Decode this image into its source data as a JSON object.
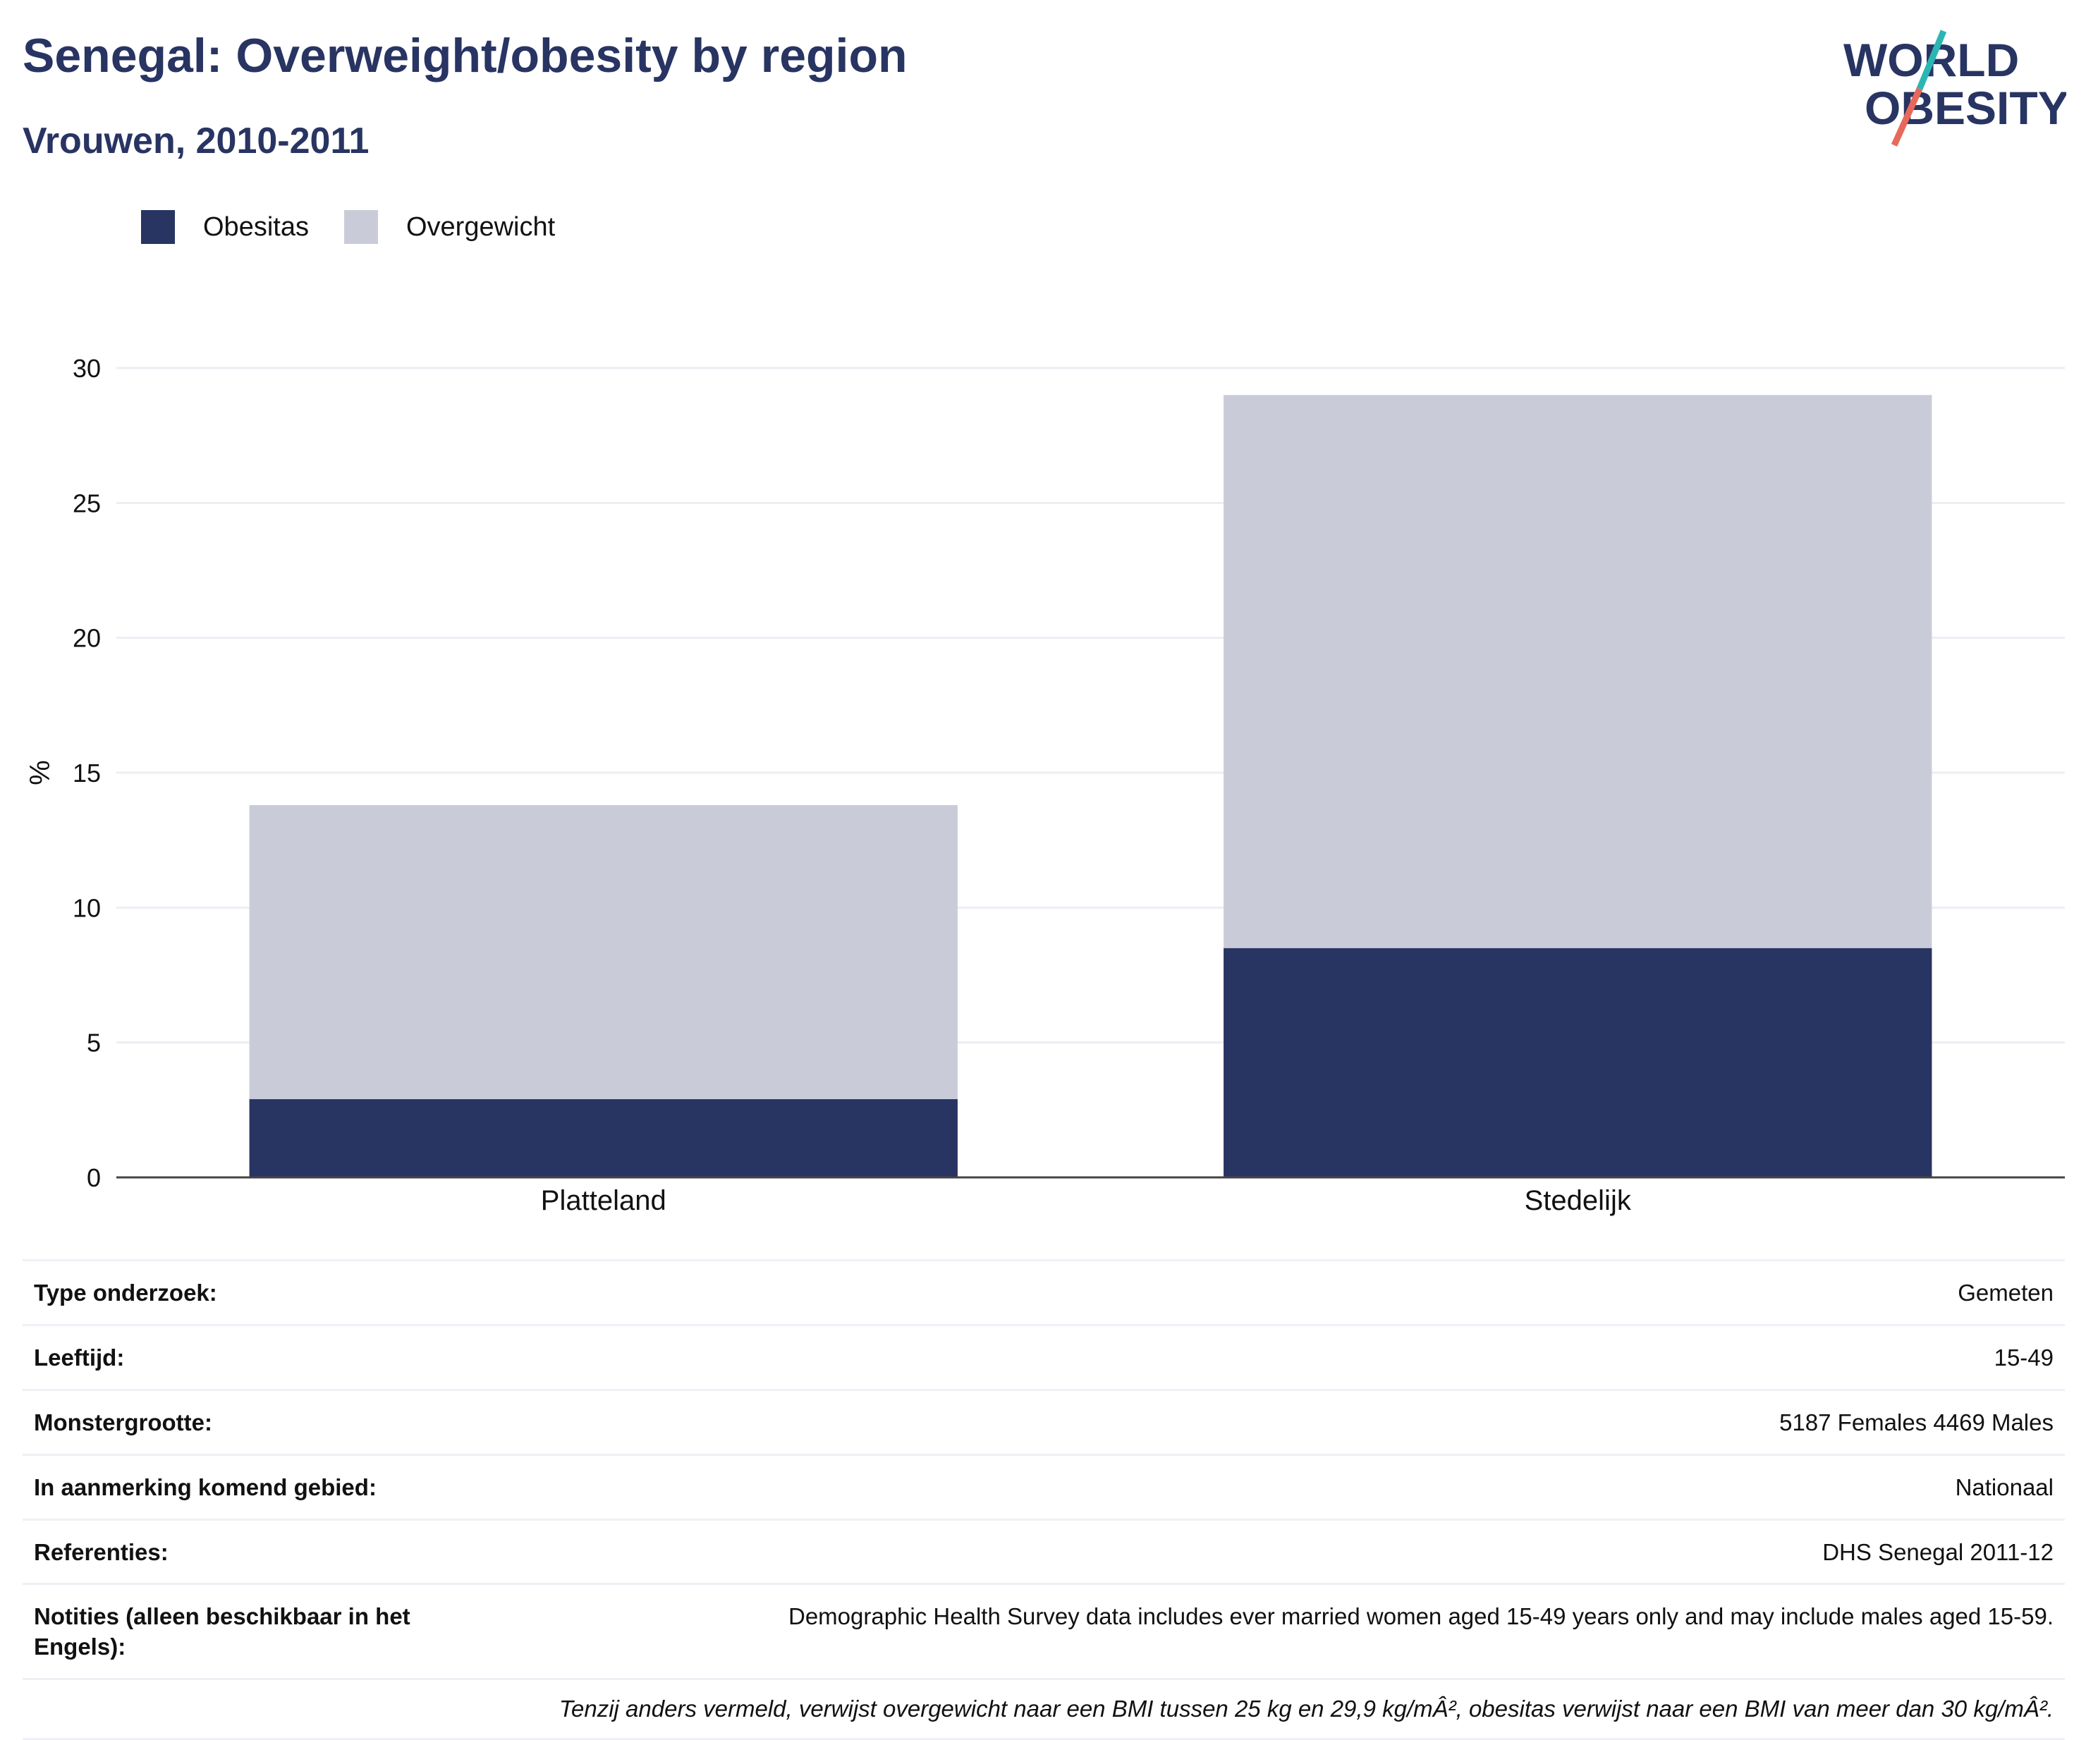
{
  "header": {
    "title": "Senegal: Overweight/obesity by region",
    "subtitle": "Vrouwen, 2010-2011"
  },
  "logo": {
    "line1": "WORLD",
    "line2": "OBESITY",
    "colors": {
      "text": "#283462",
      "slash_top": "#2bb6b4",
      "slash_bottom": "#e8695c"
    }
  },
  "colors": {
    "obesitas": "#283462",
    "overgewicht": "#c9ccd8",
    "grid": "#eceef4",
    "axis": "#444444"
  },
  "chart_data": {
    "type": "bar",
    "stacked": true,
    "categories": [
      "Platteland",
      "Stedelijk"
    ],
    "series": [
      {
        "name": "Obesitas",
        "values": [
          2.9,
          8.5
        ]
      },
      {
        "name": "Overgewicht",
        "values": [
          10.9,
          20.5
        ]
      }
    ],
    "totals": [
      13.8,
      29.0
    ],
    "ylabel": "%",
    "ylim": [
      0,
      30
    ],
    "yticks": [
      0,
      5,
      10,
      15,
      20,
      25,
      30
    ],
    "grid": true,
    "legend_position": "top-left"
  },
  "meta": {
    "rows": [
      {
        "label": "Type onderzoek:",
        "value": "Gemeten"
      },
      {
        "label": "Leeftijd:",
        "value": "15-49"
      },
      {
        "label": "Monstergrootte:",
        "value": "5187 Females 4469 Males"
      },
      {
        "label": "In aanmerking komend gebied:",
        "value": "Nationaal"
      },
      {
        "label": "Referenties:",
        "value": "DHS Senegal 2011-12"
      },
      {
        "label": "Notities (alleen beschikbaar in het Engels):",
        "value": "Demographic Health Survey data includes ever married women aged 15-49 years only and may include males aged 15-59."
      }
    ],
    "footnote": "Tenzij anders vermeld, verwijst overgewicht naar een BMI tussen 25 kg en 29,9 kg/mÂ², obesitas verwijst naar een BMI van meer dan 30 kg/mÂ²."
  }
}
